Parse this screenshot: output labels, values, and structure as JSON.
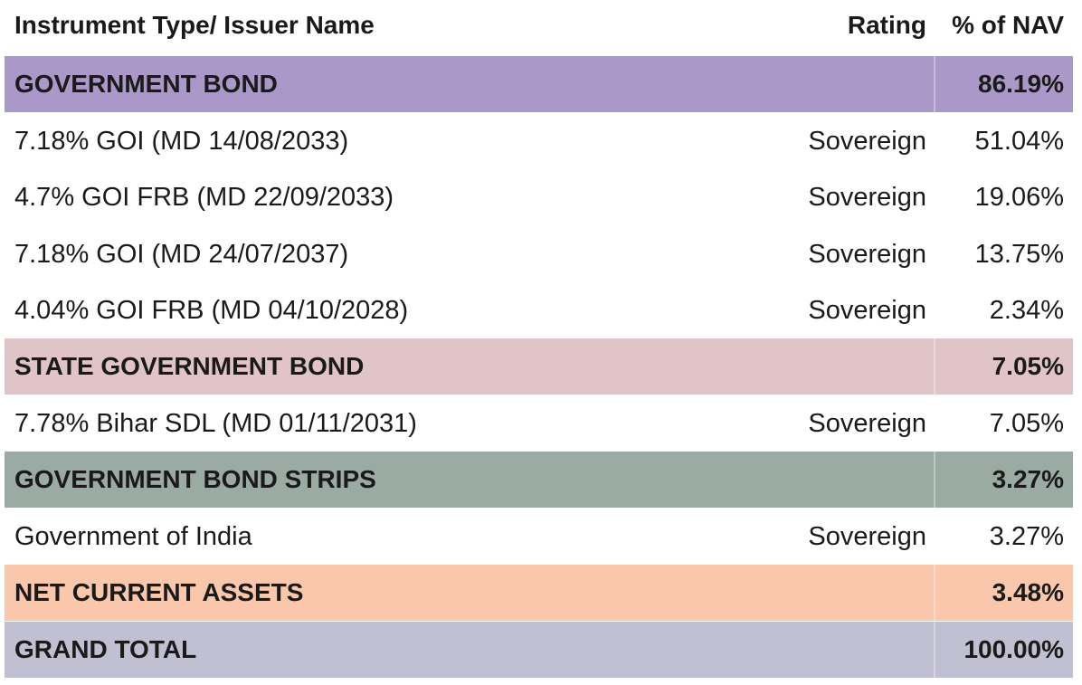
{
  "header": {
    "name_label": "Instrument Type/ Issuer Name",
    "rating_label": "Rating",
    "nav_label": "% of NAV"
  },
  "rows": [
    {
      "kind": "section",
      "name": "GOVERNMENT BOND",
      "rating": "",
      "nav": "86.19%",
      "color": "#aa98c9"
    },
    {
      "kind": "item",
      "name": "7.18% GOI (MD 14/08/2033)",
      "rating": "Sovereign",
      "nav": "51.04%"
    },
    {
      "kind": "item",
      "name": "4.7% GOI FRB (MD 22/09/2033)",
      "rating": "Sovereign",
      "nav": "19.06%"
    },
    {
      "kind": "item",
      "name": "7.18% GOI (MD 24/07/2037)",
      "rating": "Sovereign",
      "nav": "13.75%"
    },
    {
      "kind": "item",
      "name": "4.04% GOI FRB (MD 04/10/2028)",
      "rating": "Sovereign",
      "nav": "2.34%"
    },
    {
      "kind": "section",
      "name": "STATE GOVERNMENT BOND",
      "rating": "",
      "nav": "7.05%",
      "color": "#e1c4c8"
    },
    {
      "kind": "item",
      "name": "7.78% Bihar SDL (MD 01/11/2031)",
      "rating": "Sovereign",
      "nav": "7.05%"
    },
    {
      "kind": "section",
      "name": "GOVERNMENT BOND STRIPS",
      "rating": "",
      "nav": "3.27%",
      "color": "#9aaba4"
    },
    {
      "kind": "item",
      "name": "Government of India",
      "rating": "Sovereign",
      "nav": "3.27%"
    },
    {
      "kind": "section",
      "name": "NET CURRENT ASSETS",
      "rating": "",
      "nav": "3.48%",
      "color": "#f9c7ac"
    },
    {
      "kind": "section",
      "name": "GRAND TOTAL",
      "rating": "",
      "nav": "100.00%",
      "color": "#c1bfd2"
    }
  ]
}
